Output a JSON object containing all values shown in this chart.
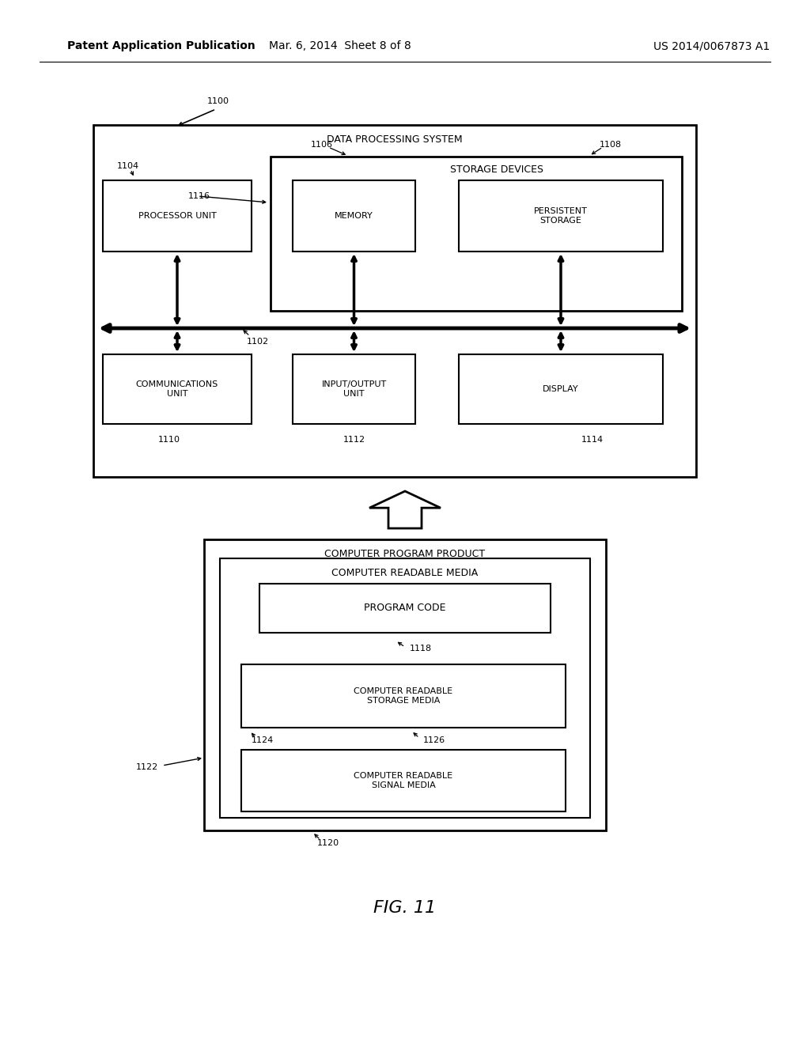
{
  "bg_color": "#ffffff",
  "text_color": "#000000",
  "header_text": "Patent Application Publication",
  "header_date": "Mar. 6, 2014  Sheet 8 of 8",
  "header_patent": "US 2014/0067873 A1",
  "fig_label": "FIG. 11",
  "dps_label": "DATA PROCESSING SYSTEM",
  "storage_label": "STORAGE DEVICES",
  "proc_label": "PROCESSOR UNIT",
  "mem_label": "MEMORY",
  "pers_label": "PERSISTENT\nSTORAGE",
  "comm_label": "COMMUNICATIONS\nUNIT",
  "io_label": "INPUT/OUTPUT\nUNIT",
  "disp_label": "DISPLAY",
  "cpp_label": "COMPUTER PROGRAM PRODUCT",
  "crm_label": "COMPUTER READABLE MEDIA",
  "prog_label": "PROGRAM CODE",
  "crsm_label": "COMPUTER READABLE\nSTORAGE MEDIA",
  "crsig_label": "COMPUTER READABLE\nSIGNAL MEDIA",
  "label_1100": "1100",
  "label_1102": "1102",
  "label_1104": "1104",
  "label_1106": "1106",
  "label_1108": "1108",
  "label_1110": "1110",
  "label_1112": "1112",
  "label_1114": "1114",
  "label_1116": "1116",
  "label_1118": "1118",
  "label_1120": "1120",
  "label_1122": "1122",
  "label_1124": "1124",
  "label_1126": "1126"
}
